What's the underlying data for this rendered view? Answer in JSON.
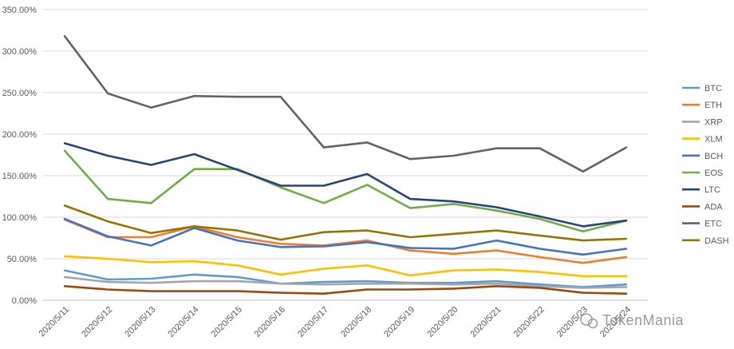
{
  "chart_data": {
    "type": "line",
    "title": "",
    "xlabel": "",
    "ylabel": "",
    "ylim": [
      0,
      350
    ],
    "y_ticks": [
      "0.00%",
      "50.00%",
      "100.00%",
      "150.00%",
      "200.00%",
      "250.00%",
      "300.00%",
      "350.00%"
    ],
    "grid": true,
    "legend_position": "right",
    "categories": [
      "2020/5/11",
      "2020/5/12",
      "2020/5/13",
      "2020/5/14",
      "2020/5/15",
      "2020/5/16",
      "2020/5/17",
      "2020/5/18",
      "2020/5/19",
      "2020/5/20",
      "2020/5/21",
      "2020/5/22",
      "2020/5/23",
      "2020/5/24"
    ],
    "series": [
      {
        "name": "BTC",
        "color": "#5B9BD5",
        "values": [
          36,
          25,
          26,
          31,
          28,
          20,
          22,
          23,
          21,
          21,
          23,
          19,
          16,
          19
        ]
      },
      {
        "name": "ETH",
        "color": "#ED7D31",
        "values": [
          97,
          76,
          76,
          89,
          76,
          68,
          66,
          72,
          60,
          56,
          60,
          52,
          45,
          52
        ]
      },
      {
        "name": "XRP",
        "color": "#A5A5A5",
        "values": [
          28,
          22,
          21,
          23,
          23,
          20,
          19,
          20,
          20,
          19,
          20,
          17,
          15,
          16
        ]
      },
      {
        "name": "XLM",
        "color": "#FFC000",
        "values": [
          53,
          50,
          46,
          47,
          42,
          31,
          38,
          42,
          30,
          36,
          37,
          34,
          29,
          29
        ]
      },
      {
        "name": "BCH",
        "color": "#4472C4",
        "values": [
          98,
          77,
          66,
          87,
          72,
          64,
          65,
          70,
          63,
          62,
          72,
          62,
          55,
          62
        ]
      },
      {
        "name": "EOS",
        "color": "#70AD47",
        "values": [
          180,
          122,
          117,
          158,
          158,
          136,
          117,
          139,
          111,
          116,
          108,
          98,
          83,
          96
        ]
      },
      {
        "name": "LTC",
        "color": "#264478",
        "values": [
          189,
          174,
          163,
          176,
          157,
          138,
          138,
          152,
          122,
          119,
          112,
          101,
          89,
          96
        ]
      },
      {
        "name": "ADA",
        "color": "#9E480E",
        "values": [
          17,
          13,
          11,
          11,
          11,
          9,
          8,
          13,
          13,
          14,
          17,
          15,
          9,
          8
        ]
      },
      {
        "name": "ETC",
        "color": "#636363",
        "values": [
          318,
          249,
          232,
          246,
          245,
          245,
          184,
          190,
          170,
          174,
          183,
          183,
          155,
          184
        ]
      },
      {
        "name": "DASH",
        "color": "#997300",
        "values": [
          114,
          95,
          81,
          89,
          84,
          73,
          82,
          84,
          76,
          80,
          84,
          78,
          72,
          74
        ]
      }
    ]
  },
  "watermark": "TokenMania"
}
